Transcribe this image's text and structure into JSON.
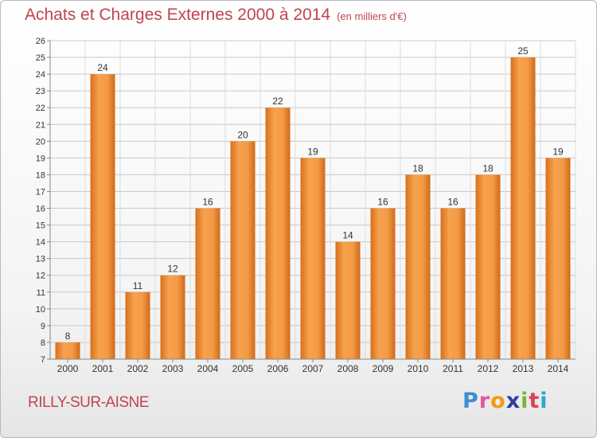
{
  "title": "Achats et Charges Externes 2000 à 2014",
  "unit": "(en milliers d'€)",
  "location": "RILLY-SUR-AISNE",
  "logo": {
    "text": "Proxiti",
    "letters": [
      "P",
      "r",
      "o",
      "x",
      "i",
      "t",
      "i"
    ]
  },
  "colors": {
    "title": "#c0444f",
    "bar_light": "#f7a24e",
    "bar_dark": "#d56f1d",
    "grid": "#c8c8c8"
  },
  "chart_data": {
    "type": "bar",
    "categories": [
      "2000",
      "2001",
      "2002",
      "2003",
      "2004",
      "2005",
      "2006",
      "2007",
      "2008",
      "2009",
      "2010",
      "2011",
      "2012",
      "2013",
      "2014"
    ],
    "values": [
      8,
      24,
      11,
      12,
      16,
      20,
      22,
      19,
      14,
      16,
      18,
      16,
      18,
      25,
      19
    ],
    "ylim": [
      7,
      26
    ],
    "yticks": [
      7,
      8,
      9,
      10,
      11,
      12,
      13,
      14,
      15,
      16,
      17,
      18,
      19,
      20,
      21,
      22,
      23,
      24,
      25,
      26
    ],
    "grid": true,
    "data_labels": true
  }
}
